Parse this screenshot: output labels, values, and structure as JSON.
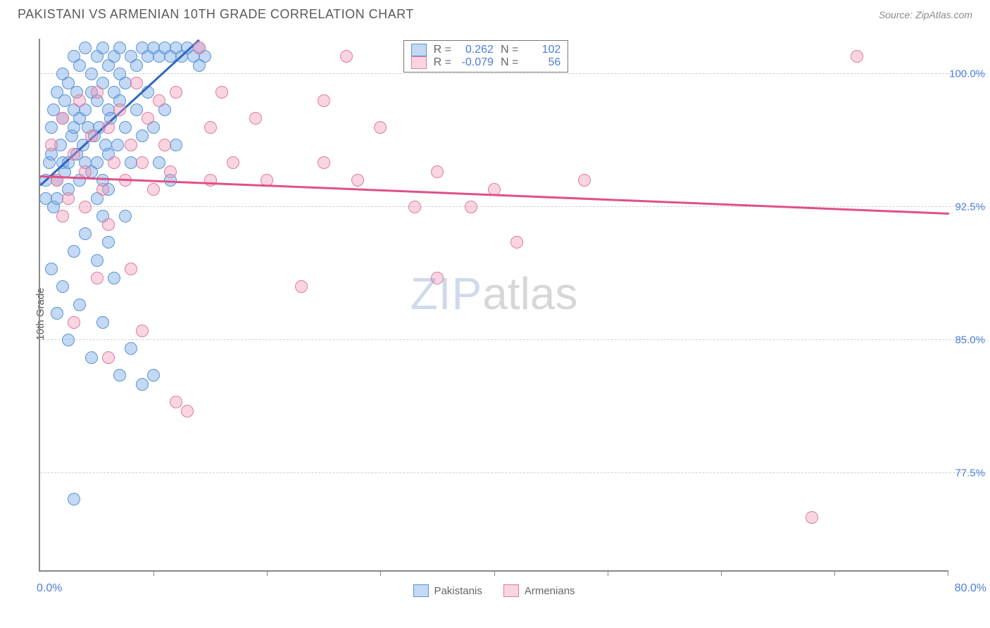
{
  "header": {
    "title": "PAKISTANI VS ARMENIAN 10TH GRADE CORRELATION CHART",
    "source": "Source: ZipAtlas.com"
  },
  "watermark": {
    "part1": "ZIP",
    "part2": "atlas"
  },
  "ylabel": "10th Grade",
  "chart": {
    "type": "scatter",
    "xlim": [
      0,
      80
    ],
    "ylim": [
      72,
      102
    ],
    "xtick_positions": [
      0,
      10,
      20,
      30,
      40,
      50,
      60,
      70,
      80
    ],
    "xaxis_start_label": "0.0%",
    "xaxis_end_label": "80.0%",
    "yticks": [
      {
        "v": 100.0,
        "label": "100.0%"
      },
      {
        "v": 92.5,
        "label": "92.5%"
      },
      {
        "v": 85.0,
        "label": "85.0%"
      },
      {
        "v": 77.5,
        "label": "77.5%"
      }
    ],
    "grid_color": "#d0d0d0",
    "axis_color": "#888888",
    "background_color": "#ffffff",
    "series": [
      {
        "name": "Pakistanis",
        "fill": "rgba(122,171,230,0.45)",
        "stroke": "#5a93d6",
        "line_color": "#2f66c4",
        "trend": {
          "x1": 0,
          "y1": 93.8,
          "x2": 14,
          "y2": 102
        },
        "R": "0.262",
        "N": "102",
        "points": [
          [
            0.5,
            94.0
          ],
          [
            0.5,
            93.0
          ],
          [
            0.8,
            95.0
          ],
          [
            1.0,
            95.5
          ],
          [
            1.0,
            97.0
          ],
          [
            1.2,
            92.5
          ],
          [
            1.2,
            98.0
          ],
          [
            1.5,
            94.0
          ],
          [
            1.5,
            99.0
          ],
          [
            1.5,
            93.0
          ],
          [
            1.8,
            96.0
          ],
          [
            2.0,
            95.0
          ],
          [
            2.0,
            97.5
          ],
          [
            2.0,
            100.0
          ],
          [
            2.2,
            94.5
          ],
          [
            2.2,
            98.5
          ],
          [
            2.5,
            95.0
          ],
          [
            2.5,
            99.5
          ],
          [
            2.5,
            93.5
          ],
          [
            2.8,
            96.5
          ],
          [
            3.0,
            97.0
          ],
          [
            3.0,
            98.0
          ],
          [
            3.0,
            101.0
          ],
          [
            3.2,
            95.5
          ],
          [
            3.2,
            99.0
          ],
          [
            3.5,
            94.0
          ],
          [
            3.5,
            97.5
          ],
          [
            3.5,
            100.5
          ],
          [
            3.8,
            96.0
          ],
          [
            4.0,
            98.0
          ],
          [
            4.0,
            95.0
          ],
          [
            4.0,
            101.5
          ],
          [
            4.2,
            97.0
          ],
          [
            4.5,
            99.0
          ],
          [
            4.5,
            94.5
          ],
          [
            4.5,
            100.0
          ],
          [
            4.8,
            96.5
          ],
          [
            5.0,
            98.5
          ],
          [
            5.0,
            101.0
          ],
          [
            5.0,
            95.0
          ],
          [
            5.2,
            97.0
          ],
          [
            5.5,
            99.5
          ],
          [
            5.5,
            101.5
          ],
          [
            5.5,
            94.0
          ],
          [
            5.8,
            96.0
          ],
          [
            6.0,
            98.0
          ],
          [
            6.0,
            100.5
          ],
          [
            6.0,
            95.5
          ],
          [
            6.2,
            97.5
          ],
          [
            6.5,
            99.0
          ],
          [
            6.5,
            101.0
          ],
          [
            6.8,
            96.0
          ],
          [
            7.0,
            98.5
          ],
          [
            7.0,
            100.0
          ],
          [
            7.0,
            101.5
          ],
          [
            7.5,
            97.0
          ],
          [
            7.5,
            99.5
          ],
          [
            8.0,
            101.0
          ],
          [
            8.0,
            95.0
          ],
          [
            8.5,
            98.0
          ],
          [
            8.5,
            100.5
          ],
          [
            9.0,
            101.5
          ],
          [
            9.0,
            96.5
          ],
          [
            9.5,
            99.0
          ],
          [
            9.5,
            101.0
          ],
          [
            10.0,
            101.5
          ],
          [
            10.0,
            97.0
          ],
          [
            10.5,
            101.0
          ],
          [
            10.5,
            95.0
          ],
          [
            11.0,
            101.5
          ],
          [
            11.0,
            98.0
          ],
          [
            11.5,
            101.0
          ],
          [
            11.5,
            94.0
          ],
          [
            12.0,
            101.5
          ],
          [
            12.0,
            96.0
          ],
          [
            12.5,
            101.0
          ],
          [
            13.0,
            101.5
          ],
          [
            13.5,
            101.0
          ],
          [
            14.0,
            101.5
          ],
          [
            14.5,
            101.0
          ],
          [
            1.0,
            89.0
          ],
          [
            1.5,
            86.5
          ],
          [
            2.0,
            88.0
          ],
          [
            2.5,
            85.0
          ],
          [
            3.0,
            90.0
          ],
          [
            3.5,
            87.0
          ],
          [
            4.0,
            91.0
          ],
          [
            4.5,
            84.0
          ],
          [
            5.0,
            89.5
          ],
          [
            5.5,
            86.0
          ],
          [
            6.0,
            90.5
          ],
          [
            6.5,
            88.5
          ],
          [
            7.0,
            83.0
          ],
          [
            7.5,
            92.0
          ],
          [
            8.0,
            84.5
          ],
          [
            9.0,
            82.5
          ],
          [
            10.0,
            83.0
          ],
          [
            3.0,
            76.0
          ],
          [
            5.0,
            93.0
          ],
          [
            5.5,
            92.0
          ],
          [
            6.0,
            93.5
          ],
          [
            14.0,
            100.5
          ]
        ]
      },
      {
        "name": "Armenians",
        "fill": "rgba(240,150,180,0.40)",
        "stroke": "#e07aa0",
        "line_color": "#e05088",
        "trend": {
          "x1": 0,
          "y1": 94.3,
          "x2": 80,
          "y2": 92.2
        },
        "R": "-0.079",
        "N": "56",
        "points": [
          [
            1.0,
            96.0
          ],
          [
            1.5,
            94.0
          ],
          [
            2.0,
            97.5
          ],
          [
            2.5,
            93.0
          ],
          [
            3.0,
            95.5
          ],
          [
            3.5,
            98.5
          ],
          [
            4.0,
            94.5
          ],
          [
            4.5,
            96.5
          ],
          [
            5.0,
            99.0
          ],
          [
            5.5,
            93.5
          ],
          [
            6.0,
            97.0
          ],
          [
            6.5,
            95.0
          ],
          [
            7.0,
            98.0
          ],
          [
            7.5,
            94.0
          ],
          [
            8.0,
            96.0
          ],
          [
            8.5,
            99.5
          ],
          [
            9.0,
            95.0
          ],
          [
            9.5,
            97.5
          ],
          [
            10.0,
            93.5
          ],
          [
            10.5,
            98.5
          ],
          [
            11.0,
            96.0
          ],
          [
            11.5,
            94.5
          ],
          [
            12.0,
            99.0
          ],
          [
            14.0,
            101.5
          ],
          [
            15.0,
            97.0
          ],
          [
            15.0,
            94.0
          ],
          [
            16.0,
            99.0
          ],
          [
            17.0,
            95.0
          ],
          [
            19.0,
            97.5
          ],
          [
            20.0,
            94.0
          ],
          [
            23.0,
            88.0
          ],
          [
            25.0,
            95.0
          ],
          [
            25.0,
            98.5
          ],
          [
            27.0,
            101.0
          ],
          [
            28.0,
            94.0
          ],
          [
            30.0,
            97.0
          ],
          [
            33.0,
            92.5
          ],
          [
            33.0,
            101.0
          ],
          [
            35.0,
            88.5
          ],
          [
            35.0,
            94.5
          ],
          [
            38.0,
            92.5
          ],
          [
            40.0,
            93.5
          ],
          [
            42.0,
            90.5
          ],
          [
            48.0,
            94.0
          ],
          [
            3.0,
            86.0
          ],
          [
            5.0,
            88.5
          ],
          [
            6.0,
            84.0
          ],
          [
            8.0,
            89.0
          ],
          [
            9.0,
            85.5
          ],
          [
            12.0,
            81.5
          ],
          [
            13.0,
            81.0
          ],
          [
            68.0,
            75.0
          ],
          [
            72.0,
            101.0
          ],
          [
            2.0,
            92.0
          ],
          [
            4.0,
            92.5
          ],
          [
            6.0,
            91.5
          ]
        ]
      }
    ]
  },
  "bottom_legend": [
    {
      "label": "Pakistanis",
      "fill": "rgba(122,171,230,0.45)",
      "stroke": "#5a93d6"
    },
    {
      "label": "Armenians",
      "fill": "rgba(240,150,180,0.40)",
      "stroke": "#e07aa0"
    }
  ]
}
